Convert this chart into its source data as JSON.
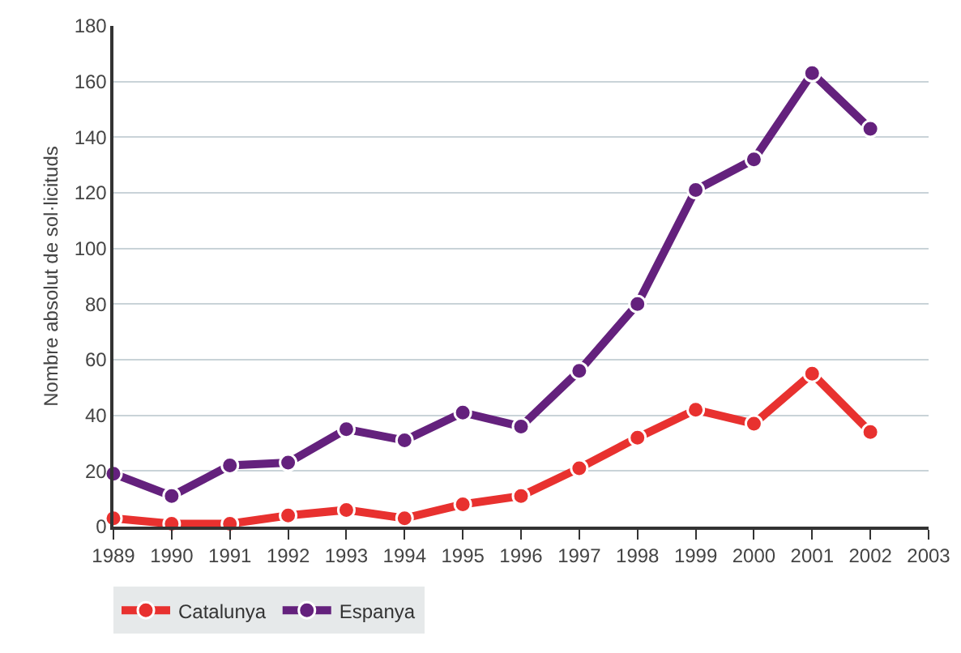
{
  "chart_data": {
    "type": "line",
    "ylabel": "Nombre absolut de sol·licituds",
    "x": [
      1989,
      1990,
      1991,
      1992,
      1993,
      1994,
      1995,
      1996,
      1997,
      1998,
      1999,
      2000,
      2001,
      2002
    ],
    "series": [
      {
        "name": "Catalunya",
        "color": "#e8312f",
        "values": [
          3,
          1,
          1,
          4,
          6,
          3,
          8,
          11,
          21,
          32,
          42,
          37,
          55,
          34
        ]
      },
      {
        "name": "Espanya",
        "color": "#64217d",
        "values": [
          19,
          11,
          22,
          23,
          35,
          31,
          41,
          36,
          56,
          80,
          121,
          132,
          163,
          143
        ]
      }
    ],
    "xlim": [
      1989,
      2003
    ],
    "xticks": [
      1989,
      1990,
      1991,
      1992,
      1993,
      1994,
      1995,
      1996,
      1997,
      1998,
      1999,
      2000,
      2001,
      2002,
      2003
    ],
    "ylim": [
      0,
      180
    ],
    "yticks": [
      0,
      20,
      40,
      60,
      80,
      100,
      120,
      140,
      160,
      180
    ],
    "grid": "y",
    "legend": "bottom left",
    "marker": "circle",
    "line_style": "solid"
  }
}
